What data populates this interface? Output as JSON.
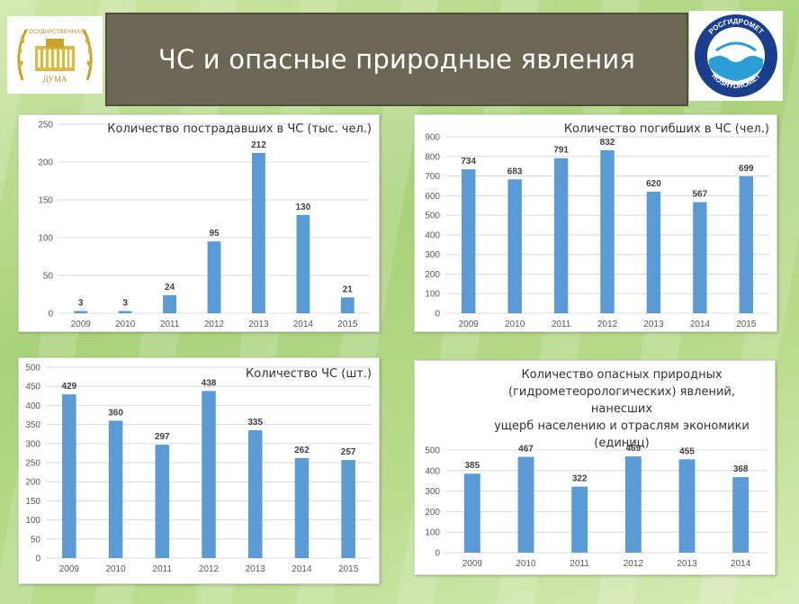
{
  "header": {
    "title": "ЧС и опасные природные явления",
    "logo_left_text": [
      "ГОСУДАРСТВЕННАЯ",
      "ДУМА"
    ],
    "logo_right_text": [
      "РОСГИДРОМЕТ",
      "ROSHYDROMET"
    ]
  },
  "colors": {
    "bar": "#5b9bd5",
    "title_bar": "#6b6754"
  },
  "chart_data": [
    {
      "id": "injured",
      "type": "bar",
      "title": "Количество пострадавших в ЧС (тыс. чел.)",
      "categories": [
        "2009",
        "2010",
        "2011",
        "2012",
        "2013",
        "2014",
        "2015"
      ],
      "values": [
        3,
        3,
        24,
        95,
        212,
        130,
        21
      ],
      "ylim": [
        0,
        250
      ],
      "yticks": [
        0,
        50,
        100,
        150,
        200,
        250
      ],
      "grid": true
    },
    {
      "id": "killed",
      "type": "bar",
      "title": "Количество погибших в ЧС (чел.)",
      "categories": [
        "2009",
        "2010",
        "2011",
        "2012",
        "2013",
        "2014",
        "2015"
      ],
      "values": [
        734,
        683,
        791,
        832,
        620,
        567,
        699
      ],
      "ylim": [
        0,
        900
      ],
      "yticks": [
        0,
        100,
        200,
        300,
        400,
        500,
        600,
        700,
        800,
        900
      ],
      "grid": true
    },
    {
      "id": "emergencies",
      "type": "bar",
      "title": "Количество ЧС (шт.)",
      "categories": [
        "2009",
        "2010",
        "2011",
        "2012",
        "2013",
        "2014",
        "2015"
      ],
      "values": [
        429,
        360,
        297,
        438,
        335,
        262,
        257
      ],
      "ylim": [
        0,
        500
      ],
      "yticks": [
        0,
        50,
        100,
        150,
        200,
        250,
        300,
        350,
        400,
        450,
        500
      ],
      "grid": true
    },
    {
      "id": "hazards",
      "type": "bar",
      "title": "Количество опасных природных (гидрометеорологических) явлений, нанесших ущерб населению и отраслям экономики (единиц)",
      "title_lines": [
        "Количество опасных природных",
        "(гидрометеорологических) явлений, нанесших",
        "ущерб населению и отраслям экономики",
        "(единиц)"
      ],
      "categories": [
        "2009",
        "2010",
        "2011",
        "2012",
        "2013",
        "2014"
      ],
      "values": [
        385,
        467,
        322,
        469,
        455,
        368
      ],
      "ylim": [
        0,
        500
      ],
      "yticks": [
        0,
        100,
        200,
        300,
        400,
        500
      ],
      "grid": true
    }
  ]
}
